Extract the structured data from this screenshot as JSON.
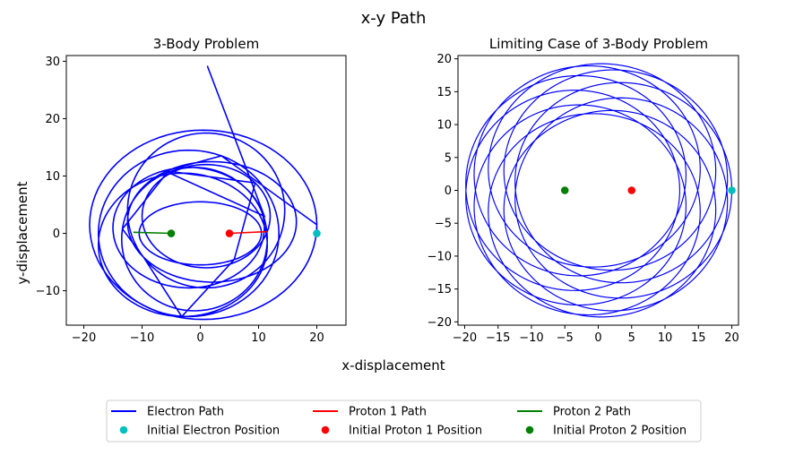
{
  "figure": {
    "suptitle": "x-y Path",
    "xlabel": "x-displacement",
    "ylabel": "y-displacement"
  },
  "colors": {
    "electron": "#0000ff",
    "proton1": "#ff0000",
    "proton2": "#008000",
    "initial_electron": "#00bfbf"
  },
  "legend": {
    "placement": "bottom-center",
    "ncol": 3,
    "entries": [
      {
        "label": "Electron Path",
        "kind": "line",
        "color": "#0000ff"
      },
      {
        "label": "Proton 1 Path",
        "kind": "line",
        "color": "#ff0000"
      },
      {
        "label": "Proton 2 Path",
        "kind": "line",
        "color": "#008000"
      },
      {
        "label": "Initial Electron Position",
        "kind": "marker",
        "color": "#00bfbf"
      },
      {
        "label": "Initial Proton 1 Position",
        "kind": "marker",
        "color": "#ff0000"
      },
      {
        "label": "Initial Proton 2 Position",
        "kind": "marker",
        "color": "#008000"
      }
    ]
  },
  "chart_data": [
    {
      "type": "line",
      "title": "3-Body Problem",
      "xlim": [
        -23,
        25
      ],
      "ylim": [
        -16,
        31
      ],
      "xticks": [
        -20,
        -10,
        0,
        10,
        20
      ],
      "yticks": [
        -10,
        0,
        10,
        20,
        30
      ],
      "grid": false,
      "series": [
        {
          "name": "Electron Path",
          "color": "#0000ff",
          "path": {
            "kind": "looping-orbit",
            "start": [
              20,
              0
            ],
            "escape_end": [
              1.2,
              29.2
            ],
            "x_range": [
              -17.5,
              17.5
            ],
            "y_range": [
              -14.5,
              18.3
            ]
          }
        },
        {
          "name": "Proton 1 Path",
          "color": "#ff0000",
          "points": [
            [
              5,
              0
            ],
            [
              11.5,
              0.3
            ]
          ]
        },
        {
          "name": "Proton 2 Path",
          "color": "#008000",
          "points": [
            [
              -5,
              0
            ],
            [
              -11.5,
              0.2
            ]
          ]
        }
      ],
      "markers": [
        {
          "name": "Initial Electron Position",
          "x": 20,
          "y": 0,
          "color": "#00bfbf"
        },
        {
          "name": "Initial Proton 1 Position",
          "x": 5,
          "y": 0,
          "color": "#ff0000"
        },
        {
          "name": "Initial Proton 2 Position",
          "x": -5,
          "y": 0,
          "color": "#008000"
        }
      ]
    },
    {
      "type": "line",
      "title": "Limiting Case of 3-Body Problem",
      "xlim": [
        -21,
        21
      ],
      "ylim": [
        -20.5,
        20.5
      ],
      "xticks": [
        -20,
        -15,
        -10,
        -5,
        0,
        5,
        10,
        15,
        20
      ],
      "yticks": [
        -20,
        -15,
        -10,
        -5,
        0,
        5,
        10,
        15,
        20
      ],
      "grid": false,
      "series": [
        {
          "name": "Electron Path",
          "color": "#0000ff",
          "path": {
            "kind": "precessing-ellipse-band",
            "outer_rx": 20,
            "outer_ry": 19.3,
            "inner_rx": 12.2,
            "inner_ry": 11.6,
            "start": [
              20,
              0
            ]
          }
        }
      ],
      "markers": [
        {
          "name": "Initial Electron Position",
          "x": 20,
          "y": 0,
          "color": "#00bfbf"
        },
        {
          "name": "Initial Proton 1 Position",
          "x": 5,
          "y": 0,
          "color": "#ff0000"
        },
        {
          "name": "Initial Proton 2 Position",
          "x": -5,
          "y": 0,
          "color": "#008000"
        }
      ]
    }
  ]
}
